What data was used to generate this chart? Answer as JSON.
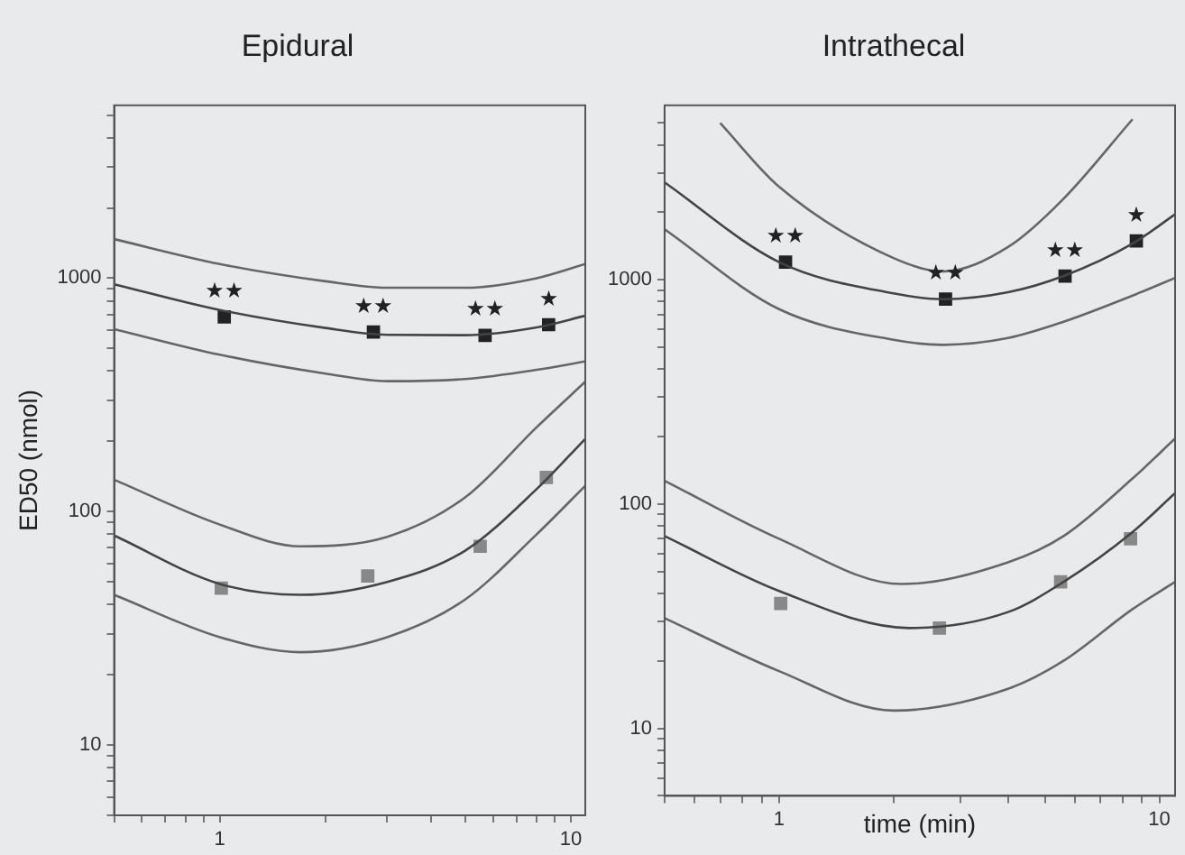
{
  "chart_data": [
    {
      "type": "line",
      "title": "Epidural",
      "ylabel": "ED50 (nmol)",
      "log": "xy",
      "marker": "none",
      "line_style": "solid",
      "xlim": [
        0.5,
        11
      ],
      "xticks": [
        {
          "value": 0.5,
          "label": null
        },
        {
          "value": 0.6,
          "label": null
        },
        {
          "value": 0.7,
          "label": null
        },
        {
          "value": 0.8,
          "label": null
        },
        {
          "value": 0.9,
          "label": null
        },
        {
          "value": 1,
          "label": "1"
        },
        {
          "value": 2,
          "label": null
        },
        {
          "value": 3,
          "label": null
        },
        {
          "value": 4,
          "label": null
        },
        {
          "value": 5,
          "label": null
        },
        {
          "value": 6,
          "label": null
        },
        {
          "value": 7,
          "label": null
        },
        {
          "value": 8,
          "label": null
        },
        {
          "value": 9,
          "label": null
        },
        {
          "value": 10,
          "label": "10"
        }
      ],
      "ylim": [
        5,
        5500
      ],
      "yticks": [
        {
          "value": 5,
          "label": null
        },
        {
          "value": 6,
          "label": null
        },
        {
          "value": 7,
          "label": null
        },
        {
          "value": 8,
          "label": null
        },
        {
          "value": 9,
          "label": null
        },
        10,
        {
          "value": 20,
          "label": null
        },
        {
          "value": 30,
          "label": null
        },
        {
          "value": 40,
          "label": null
        },
        {
          "value": 50,
          "label": null
        },
        {
          "value": 60,
          "label": null
        },
        {
          "value": 70,
          "label": null
        },
        {
          "value": 80,
          "label": null
        },
        {
          "value": 90,
          "label": null
        },
        100,
        {
          "value": 200,
          "label": null
        },
        {
          "value": 300,
          "label": null
        },
        {
          "value": 400,
          "label": null
        },
        {
          "value": 500,
          "label": null
        },
        {
          "value": 600,
          "label": null
        },
        {
          "value": 700,
          "label": null
        },
        {
          "value": 800,
          "label": null
        },
        {
          "value": 900,
          "label": null
        },
        1000,
        {
          "value": 2000,
          "label": null
        },
        {
          "value": 3000,
          "label": null
        },
        {
          "value": 4000,
          "label": null
        },
        {
          "value": 5000,
          "label": null
        }
      ],
      "series": [
        {
          "type": "line",
          "color": "#666666",
          "x": [
            0.5,
            1,
            2,
            3,
            5,
            8,
            11
          ],
          "values": [
            1470,
            1150,
            970,
            910,
            910,
            1000,
            1150
          ]
        },
        {
          "type": "line",
          "color": "#444444",
          "x": [
            0.5,
            1,
            2,
            3,
            5,
            8,
            11
          ],
          "values": [
            942,
            731,
            612,
            572,
            570,
            615,
            690
          ]
        },
        {
          "type": "line",
          "color": "#666666",
          "x": [
            0.5,
            1,
            2,
            3,
            5,
            8,
            11
          ],
          "values": [
            605,
            470,
            390,
            362,
            370,
            405,
            440
          ]
        },
        {
          "type": "line",
          "color": "#666666",
          "x": [
            0.5,
            1,
            1.7,
            3,
            5,
            8,
            11
          ],
          "values": [
            137,
            88,
            71,
            78,
            115,
            230,
            360
          ]
        },
        {
          "type": "line",
          "color": "#444444",
          "x": [
            0.5,
            1,
            1.7,
            3,
            5,
            8,
            11
          ],
          "values": [
            79,
            49,
            44,
            50,
            68,
            125,
            205
          ]
        },
        {
          "type": "line",
          "color": "#666666",
          "x": [
            0.5,
            1,
            1.7,
            3,
            5,
            8,
            11
          ],
          "values": [
            44,
            29,
            25,
            29,
            42,
            80,
            129
          ]
        },
        {
          "type": "scatter",
          "marker": "square",
          "color": "#222222",
          "x": [
            1.03,
            2.74,
            5.7,
            8.65
          ],
          "values": [
            683,
            588,
            569,
            632
          ]
        },
        {
          "type": "scatter",
          "marker": "square",
          "color": "#888888",
          "x": [
            1.01,
            2.64,
            5.52,
            8.52
          ],
          "values": [
            47,
            53,
            71,
            140
          ]
        }
      ],
      "annotations": [
        {
          "text": "★★",
          "x": 1.03,
          "y": 683
        },
        {
          "text": "★★",
          "x": 2.74,
          "y": 588
        },
        {
          "text": "★★",
          "x": 5.7,
          "y": 569
        },
        {
          "text": "★",
          "x": 8.65,
          "y": 632
        }
      ]
    },
    {
      "type": "line",
      "title": "Intrathecal",
      "xlabel": "time (min)",
      "log": "xy",
      "marker": "none",
      "line_style": "solid",
      "xlim": [
        0.5,
        11
      ],
      "xticks": [
        {
          "value": 0.5,
          "label": null
        },
        {
          "value": 0.6,
          "label": null
        },
        {
          "value": 0.7,
          "label": null
        },
        {
          "value": 0.8,
          "label": null
        },
        {
          "value": 0.9,
          "label": null
        },
        {
          "value": 1,
          "label": "1"
        },
        {
          "value": 2,
          "label": null
        },
        {
          "value": 3,
          "label": null
        },
        {
          "value": 4,
          "label": null
        },
        {
          "value": 5,
          "label": null
        },
        {
          "value": 6,
          "label": null
        },
        {
          "value": 7,
          "label": null
        },
        {
          "value": 8,
          "label": null
        },
        {
          "value": 9,
          "label": null
        },
        {
          "value": 10,
          "label": "10"
        }
      ],
      "ylim": [
        5,
        6000
      ],
      "yticks": [
        {
          "value": 5,
          "label": null
        },
        {
          "value": 6,
          "label": null
        },
        {
          "value": 7,
          "label": null
        },
        {
          "value": 8,
          "label": null
        },
        {
          "value": 9,
          "label": null
        },
        10,
        {
          "value": 20,
          "label": null
        },
        {
          "value": 30,
          "label": null
        },
        {
          "value": 40,
          "label": null
        },
        {
          "value": 50,
          "label": null
        },
        {
          "value": 60,
          "label": null
        },
        {
          "value": 70,
          "label": null
        },
        {
          "value": 80,
          "label": null
        },
        {
          "value": 90,
          "label": null
        },
        100,
        {
          "value": 200,
          "label": null
        },
        {
          "value": 300,
          "label": null
        },
        {
          "value": 400,
          "label": null
        },
        {
          "value": 500,
          "label": null
        },
        {
          "value": 600,
          "label": null
        },
        {
          "value": 700,
          "label": null
        },
        {
          "value": 800,
          "label": null
        },
        {
          "value": 900,
          "label": null
        },
        1000,
        {
          "value": 2000,
          "label": null
        },
        {
          "value": 3000,
          "label": null
        },
        {
          "value": 4000,
          "label": null
        },
        {
          "value": 5000,
          "label": null
        }
      ],
      "series": [
        {
          "type": "line",
          "color": "#666666",
          "x": [
            0.7,
            1,
            2,
            2.7,
            4,
            5.6,
            8.5
          ],
          "values": [
            5000,
            2600,
            1250,
            1090,
            1400,
            2300,
            5200
          ]
        },
        {
          "type": "line",
          "color": "#444444",
          "x": [
            0.5,
            1,
            2,
            2.7,
            4,
            5.6,
            8.5,
            11
          ],
          "values": [
            2720,
            1200,
            870,
            820,
            880,
            1040,
            1450,
            1960
          ]
        },
        {
          "type": "line",
          "color": "#666666",
          "x": [
            0.5,
            1,
            2,
            2.7,
            4,
            5.6,
            8.5,
            11
          ],
          "values": [
            1680,
            740,
            540,
            513,
            550,
            650,
            850,
            1020
          ]
        },
        {
          "type": "line",
          "color": "#666666",
          "x": [
            0.5,
            1,
            2.1,
            4,
            5.6,
            8.5,
            11
          ],
          "values": [
            127,
            70,
            44,
            55,
            72,
            130,
            196
          ]
        },
        {
          "type": "line",
          "color": "#444444",
          "x": [
            0.5,
            1,
            2.2,
            4,
            5.6,
            8.5,
            11
          ],
          "values": [
            72,
            41,
            28,
            33,
            45,
            75,
            112
          ]
        },
        {
          "type": "line",
          "color": "#666666",
          "x": [
            0.5,
            1,
            2,
            4,
            5.6,
            8.5,
            11
          ],
          "values": [
            31,
            18,
            12,
            15,
            20,
            34,
            45
          ]
        },
        {
          "type": "scatter",
          "marker": "square",
          "color": "#222222",
          "x": [
            1.04,
            2.74,
            5.65,
            8.7
          ],
          "values": [
            1200,
            820,
            1040,
            1490
          ]
        },
        {
          "type": "scatter",
          "marker": "square",
          "color": "#888888",
          "x": [
            1.01,
            2.64,
            5.5,
            8.4
          ],
          "values": [
            36,
            28,
            45,
            70
          ]
        }
      ],
      "annotations": [
        {
          "text": "★★",
          "x": 1.04,
          "y": 1200
        },
        {
          "text": "★★",
          "x": 2.74,
          "y": 820
        },
        {
          "text": "★★",
          "x": 5.65,
          "y": 1040
        },
        {
          "text": "★",
          "x": 8.7,
          "y": 1490
        }
      ]
    }
  ]
}
